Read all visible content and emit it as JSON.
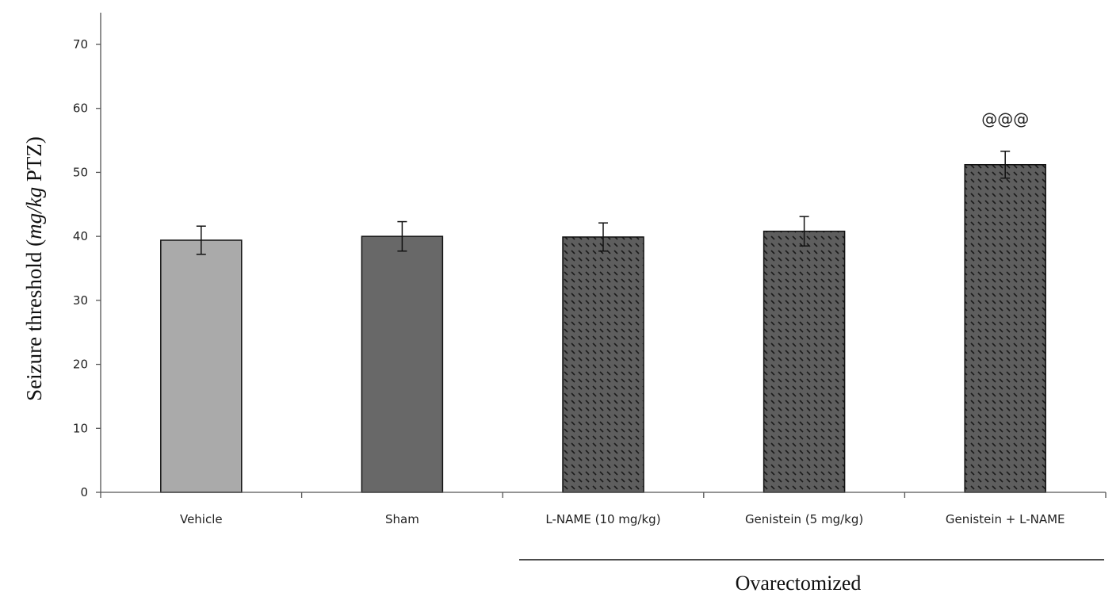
{
  "chart_data": {
    "type": "bar",
    "categories": [
      "Vehicle",
      "Sham",
      "L-NAME (10 mg/kg)",
      "Genistein (5 mg/kg)",
      "Genistein + L-NAME"
    ],
    "values": [
      39.4,
      40.0,
      39.9,
      40.8,
      51.2
    ],
    "errors": [
      2.2,
      2.3,
      2.2,
      2.3,
      2.1
    ],
    "fills": [
      "#aaaaaa",
      "#686868",
      "hatched",
      "hatched",
      "hatched"
    ],
    "annotations": [
      "",
      "",
      "",
      "",
      "@@@"
    ],
    "ylabel": "Seizure threshold (mg/kg PTZ)",
    "ylim": [
      0,
      70
    ],
    "yticks": [
      0,
      10,
      20,
      30,
      40,
      50,
      60,
      70
    ],
    "group_label": "Ovarectomized",
    "group_members": [
      "L-NAME (10 mg/kg)",
      "Genistein (5 mg/kg)",
      "Genistein + L-NAME"
    ],
    "grid": false,
    "colors": {
      "hatch_bg": "#5e5e5e",
      "hatch_line": "#1a1a1a",
      "axis": "#555555"
    }
  }
}
